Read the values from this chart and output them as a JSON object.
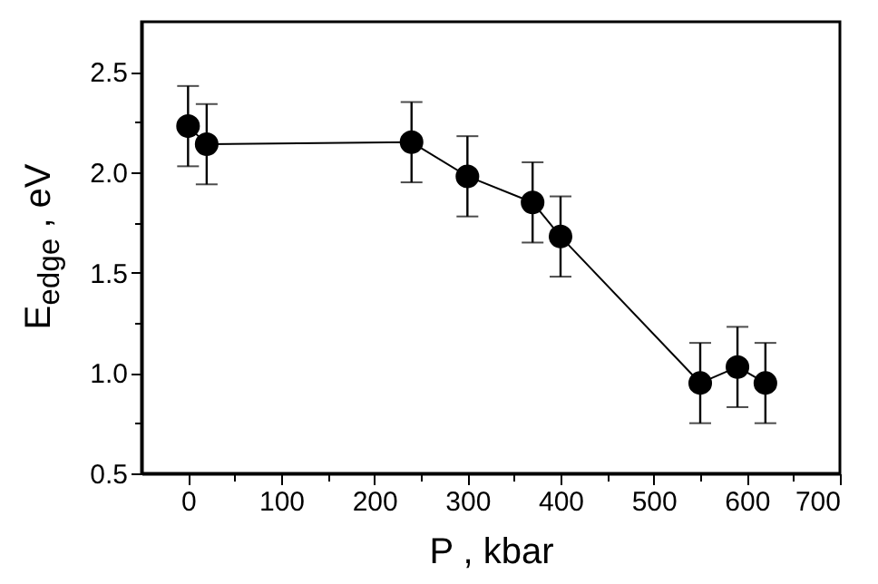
{
  "chart_data": {
    "type": "line",
    "xlabel": "P , kbar",
    "ylabel": "E$_{edge}$ , eV",
    "x": [
      0,
      20,
      240,
      300,
      370,
      400,
      550,
      590,
      620
    ],
    "series": [
      {
        "color": "#000000",
        "values": [
          2.23,
          2.14,
          2.15,
          1.98,
          1.85,
          1.68,
          0.95,
          1.03,
          0.95
        ],
        "errors": [
          0.2,
          0.2,
          0.2,
          0.2,
          0.2,
          0.2,
          0.2,
          0.2,
          0.2
        ]
      }
    ],
    "marker": "circle",
    "line_style": "solid",
    "xlim": [
      -50,
      700
    ],
    "ylim": [
      0.5,
      2.75
    ],
    "xticks": [
      0,
      {
        "value": 50,
        "label": null
      },
      100,
      {
        "value": 150,
        "label": null
      },
      200,
      {
        "value": 250,
        "label": null
      },
      300,
      {
        "value": 350,
        "label": null
      },
      400,
      {
        "value": 450,
        "label": null
      },
      500,
      {
        "value": 550,
        "label": null
      },
      600,
      {
        "value": 650,
        "label": null
      },
      700
    ],
    "yticks": [
      0.5,
      {
        "value": 0.75,
        "label": null
      },
      {
        "value": 1,
        "label": "1.0"
      },
      {
        "value": 1.25,
        "label": null
      },
      1.5,
      {
        "value": 1.75,
        "label": null
      },
      {
        "value": 2,
        "label": "2.0"
      },
      {
        "value": 2.25,
        "label": null
      },
      2.5
    ]
  }
}
